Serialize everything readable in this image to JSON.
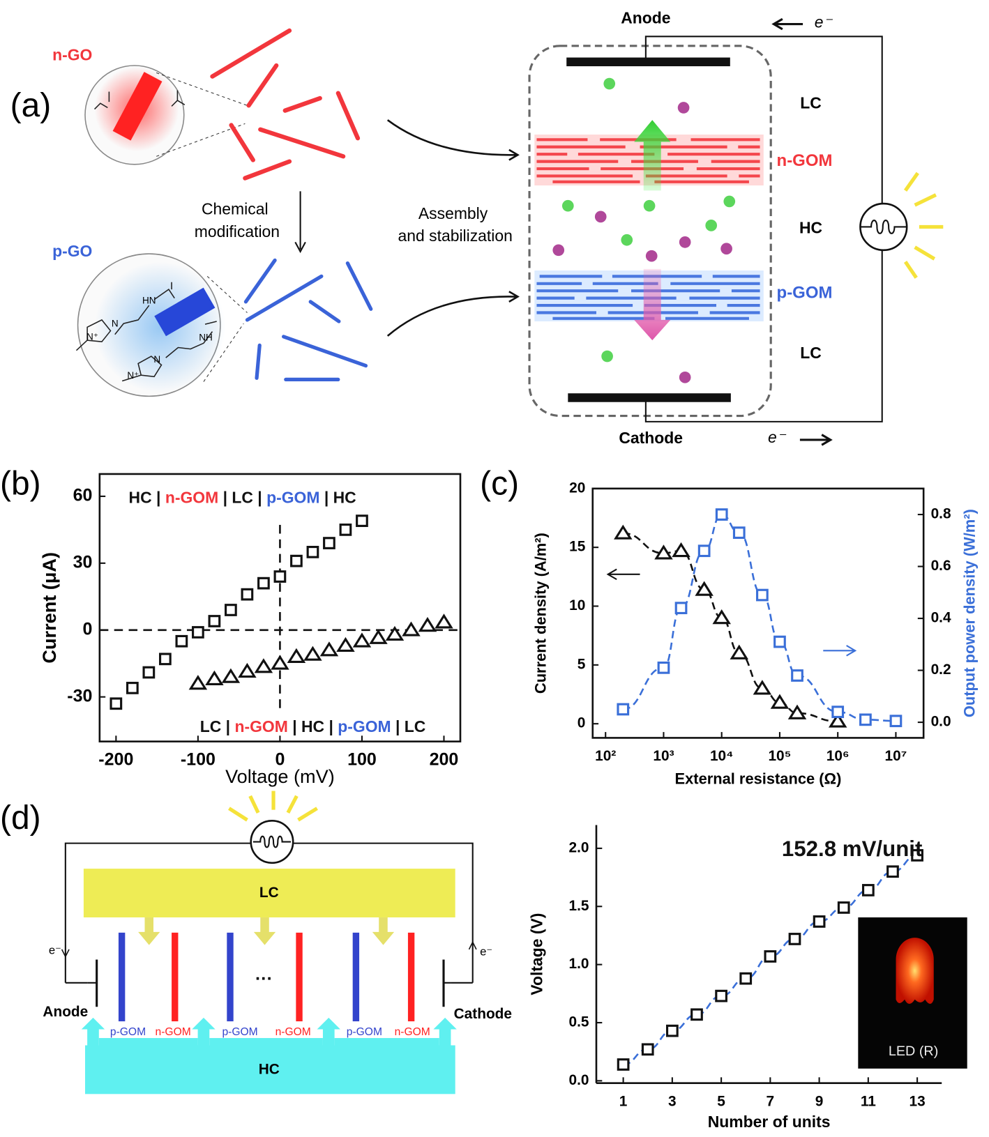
{
  "panel_labels": [
    "(a)",
    "(b)",
    "(c)",
    "(d)"
  ],
  "diagram_a": {
    "n_go": "n-GO",
    "p_go": "p-GO",
    "step_1": [
      "Chemical",
      "modification"
    ],
    "step_2": [
      "Assembly",
      "and stabilization"
    ],
    "anode": "Anode",
    "cathode": "Cathode",
    "electron_top": "e⁻",
    "electron_bottom": "e⁻",
    "layers": [
      "LC",
      "n-GOM",
      "HC",
      "p-GOM",
      "LC"
    ],
    "chem_labels": [
      "HN",
      "NH",
      "N",
      "N⁺",
      "N",
      "N⁺"
    ]
  },
  "diagram_d": {
    "top": "LC",
    "bottom": "HC",
    "anode": "Anode",
    "cathode": "Cathode",
    "electron_left": "e⁻",
    "electron_right": "e⁻",
    "membranes": [
      "p-GOM",
      "n-GOM",
      "p-GOM",
      "n-GOM",
      "p-GOM",
      "n-GOM"
    ],
    "ellipsis": "···"
  },
  "chart_data": [
    {
      "type": "scatter",
      "xlabel": "Voltage (mV)",
      "ylabel": "Current (μA)",
      "xlim": [
        -220,
        220
      ],
      "ylim": [
        -50,
        70
      ],
      "xticks": [
        -200,
        -100,
        0,
        100,
        200
      ],
      "yticks": [
        -30,
        0,
        30,
        60
      ],
      "ref_lines": {
        "x": 0,
        "y": 0
      },
      "series": [
        {
          "marker": "square",
          "color": "#111111",
          "x": [
            -200,
            -180,
            -160,
            -140,
            -120,
            -100,
            -80,
            -60,
            -40,
            -20,
            0,
            20,
            40,
            60,
            80,
            100
          ],
          "values": [
            -33,
            -26,
            -19,
            -13,
            -5,
            -1,
            4,
            9,
            16,
            21,
            24,
            31,
            35,
            39,
            45,
            49
          ]
        },
        {
          "marker": "triangle",
          "color": "#111111",
          "x": [
            -100,
            -80,
            -60,
            -40,
            -20,
            0,
            20,
            40,
            60,
            80,
            100,
            120,
            140,
            160,
            180,
            200
          ],
          "values": [
            -24,
            -22,
            -21,
            -18.6,
            -16.5,
            -15,
            -12,
            -11,
            -9,
            -7,
            -5,
            -3.5,
            -2,
            0,
            2,
            3.5
          ]
        }
      ],
      "annotations": [
        {
          "parts": [
            {
              "text": "HC |",
              "color": "#111111"
            },
            {
              "text": "n-GOM",
              "color": "#f2363c"
            },
            {
              "text": "| LC |",
              "color": "#111111"
            },
            {
              "text": "p-GOM",
              "color": "#3a63d8"
            },
            {
              "text": "| HC",
              "color": "#111111"
            }
          ]
        },
        {
          "parts": [
            {
              "text": "LC |",
              "color": "#111111"
            },
            {
              "text": "n-GOM",
              "color": "#f2363c"
            },
            {
              "text": "| HC |",
              "color": "#111111"
            },
            {
              "text": "p-GOM",
              "color": "#3a63d8"
            },
            {
              "text": "| LC",
              "color": "#111111"
            }
          ]
        }
      ]
    },
    {
      "type": "scatter",
      "xlabel": "External resistance (Ω)",
      "ylabel": "Current density (A/m²)",
      "y2label": "Output power density (W/m²)",
      "xscale": "log",
      "xlim": [
        60,
        30000000
      ],
      "ylim": [
        -1.2,
        20
      ],
      "y2lim": [
        -0.06,
        0.9
      ],
      "xticks": [
        {
          "value": 100,
          "label": "10²"
        },
        {
          "value": 1000,
          "label": "10³"
        },
        {
          "value": 10000,
          "label": "10⁴"
        },
        {
          "value": 100000,
          "label": "10⁵"
        },
        {
          "value": 1000000,
          "label": "10⁶"
        },
        {
          "value": 10000000,
          "label": "10⁷"
        }
      ],
      "yticks": [
        0,
        5,
        10,
        15,
        20
      ],
      "y2ticks": [
        {
          "value": 0,
          "label": "0.0"
        },
        0.2,
        0.4,
        0.6,
        0.8
      ],
      "y2color": "#3a6fd8",
      "series": [
        {
          "marker": "triangle",
          "color": "#111111",
          "line_color": "#111111",
          "x": [
            200,
            1000,
            2000,
            5000,
            10000,
            20000,
            50000,
            100000,
            200000,
            1000000
          ],
          "values": [
            16.2,
            14.5,
            14.7,
            11.4,
            9.0,
            6.0,
            3.0,
            1.8,
            0.9,
            0.2
          ]
        },
        {
          "marker": "square",
          "color": "#3a6fd8",
          "line_color": "#3a6fd8",
          "axis": "y2",
          "x": [
            200,
            1000,
            2000,
            5000,
            10000,
            20000,
            50000,
            100000,
            200000,
            1000000,
            3000000,
            10000000
          ],
          "values": [
            0.05,
            0.21,
            0.44,
            0.66,
            0.8,
            0.73,
            0.49,
            0.31,
            0.18,
            0.04,
            0.01,
            0.005
          ]
        }
      ]
    },
    {
      "type": "scatter",
      "xlabel": "Number of units",
      "ylabel": "Voltage (V)",
      "xlim": [
        -0.1,
        14
      ],
      "ylim": [
        -0.02,
        2.2
      ],
      "xticks": [
        1,
        3,
        5,
        7,
        9,
        11,
        13
      ],
      "yticks": [
        {
          "value": 0,
          "label": "0.0"
        },
        0.5,
        {
          "value": 1,
          "label": "1.0"
        },
        1.5,
        {
          "value": 2,
          "label": "2.0"
        }
      ],
      "inset_label": "LED (R)",
      "series": [
        {
          "marker": "square",
          "color": "#111111",
          "line_color": "#3a6fd8",
          "x": [
            1,
            2,
            3,
            4,
            5,
            6,
            7,
            8,
            9,
            10,
            11,
            12,
            13
          ],
          "values": [
            0.14,
            0.27,
            0.43,
            0.57,
            0.73,
            0.88,
            1.07,
            1.22,
            1.37,
            1.49,
            1.64,
            1.8,
            1.94
          ]
        }
      ],
      "annotations": [
        {
          "parts": [
            {
              "text": "152.8 mV/unit",
              "color": "#111111"
            }
          ]
        }
      ]
    }
  ]
}
